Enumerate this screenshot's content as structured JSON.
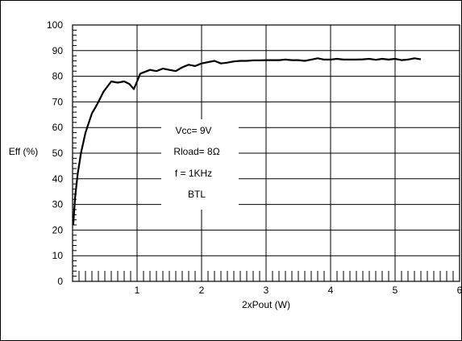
{
  "chart_data": {
    "type": "line",
    "title": "",
    "xlabel": "2xPout (W)",
    "ylabel": "Eff (%)",
    "xlim": [
      0,
      6
    ],
    "ylim": [
      0,
      100
    ],
    "x_ticks": [
      1,
      2,
      3,
      4,
      5,
      6
    ],
    "y_ticks": [
      0,
      10,
      20,
      30,
      40,
      50,
      60,
      70,
      80,
      90,
      100
    ],
    "grid": true,
    "annotations": [
      "Vcc= 9V",
      "Rload= 8Ω",
      "f = 1KHz",
      "BTL"
    ],
    "series": [
      {
        "x": [
          0.01,
          0.04,
          0.08,
          0.13,
          0.2,
          0.3,
          0.38,
          0.48,
          0.6,
          0.7,
          0.8,
          0.88,
          0.95,
          1.0,
          1.05,
          1.1,
          1.2,
          1.3,
          1.4,
          1.5,
          1.6,
          1.7,
          1.8,
          1.9,
          2.0,
          2.1,
          2.2,
          2.3,
          2.4,
          2.5,
          2.6,
          2.7,
          2.8,
          2.9,
          3.0,
          3.1,
          3.2,
          3.3,
          3.4,
          3.5,
          3.6,
          3.7,
          3.8,
          3.9,
          4.0,
          4.1,
          4.2,
          4.3,
          4.4,
          4.5,
          4.6,
          4.7,
          4.8,
          4.9,
          5.0,
          5.1,
          5.2,
          5.3,
          5.4
        ],
        "values": [
          22,
          33,
          42,
          50,
          58,
          65.5,
          69,
          74,
          78,
          77.5,
          78,
          77,
          75,
          78,
          81,
          81.5,
          82.5,
          82,
          83,
          82.5,
          82,
          83.5,
          84.5,
          84,
          85,
          85.5,
          86,
          85,
          85.3,
          85.8,
          86,
          86,
          86.2,
          86.2,
          86.3,
          86.3,
          86.3,
          86.5,
          86.3,
          86.3,
          86,
          86.5,
          87,
          86.5,
          86.5,
          86.8,
          86.5,
          86.5,
          86.5,
          86.6,
          86.8,
          86.4,
          86.8,
          86.5,
          86.8,
          86.3,
          86.5,
          87,
          86.6
        ]
      }
    ]
  }
}
